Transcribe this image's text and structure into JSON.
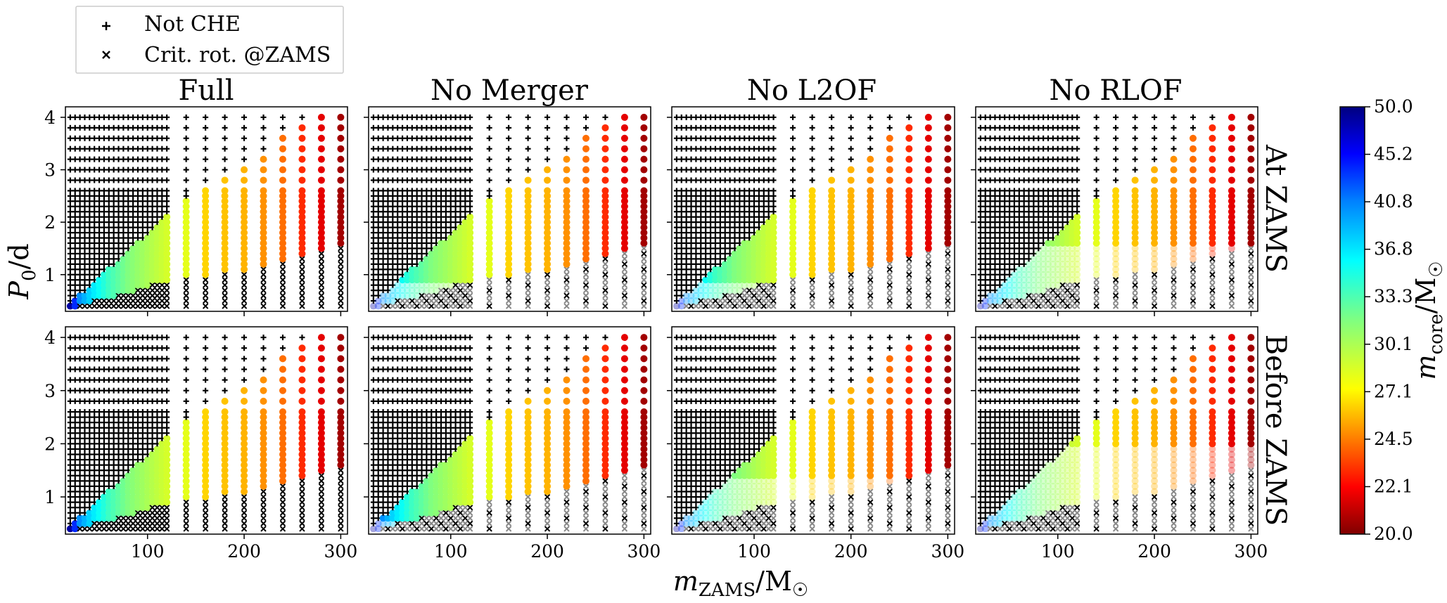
{
  "legend": {
    "items": [
      {
        "marker": "plus",
        "label": "Not CHE"
      },
      {
        "marker": "x",
        "label": "Crit. rot. @ZAMS"
      }
    ]
  },
  "chart_data": {
    "type": "scatter",
    "panel_titles": [
      "Full",
      "No Merger",
      "No L2OF",
      "No RLOF"
    ],
    "row_labels": [
      "At ZAMS",
      "Before ZAMS"
    ],
    "xlabel_base": "m",
    "xlabel_sub": "ZAMS",
    "xlabel_rest": "/M",
    "ylabel_base": "P",
    "ylabel_sub": "0",
    "ylabel_rest": "/d",
    "xticks": [
      100,
      200,
      300
    ],
    "yticks": [
      1,
      2,
      3,
      4
    ],
    "xlim": [
      15,
      307
    ],
    "ylim": [
      0.3,
      4.2
    ],
    "x_grid_masses": [
      20,
      25,
      30,
      35,
      40,
      45,
      50,
      55,
      60,
      65,
      70,
      75,
      80,
      85,
      90,
      95,
      100,
      105,
      110,
      115,
      120,
      140,
      160,
      180,
      200,
      220,
      240,
      260,
      280,
      300
    ],
    "p0_low_grid": [
      0.4,
      0.5,
      0.6,
      0.7,
      0.8,
      0.9,
      1.0,
      1.1,
      1.2,
      1.3,
      1.4,
      1.5,
      1.6,
      1.7,
      1.8,
      1.9,
      2.0,
      2.1,
      2.2,
      2.3,
      2.4,
      2.5,
      2.6
    ],
    "p0_high_grid": [
      2.8,
      3.0,
      3.2,
      3.4,
      3.6,
      3.8,
      4.0
    ],
    "che_period_limits": {
      "lower": [
        [
          20,
          0.35
        ],
        [
          40,
          0.5
        ],
        [
          80,
          0.65
        ],
        [
          120,
          0.9
        ],
        [
          200,
          1.1
        ],
        [
          300,
          1.55
        ]
      ],
      "upper": [
        [
          20,
          0.45
        ],
        [
          60,
          1.1
        ],
        [
          120,
          2.1
        ],
        [
          140,
          2.45
        ],
        [
          160,
          2.6
        ],
        [
          200,
          3.0
        ],
        [
          240,
          3.6
        ],
        [
          260,
          3.8
        ],
        [
          280,
          4.0
        ],
        [
          300,
          4.1
        ]
      ]
    },
    "core_mass_vs_mzams": [
      [
        20,
        21
      ],
      [
        25,
        25
      ],
      [
        30,
        28
      ],
      [
        40,
        30
      ],
      [
        60,
        33
      ],
      [
        80,
        35
      ],
      [
        120,
        37.5
      ],
      [
        140,
        38
      ],
      [
        160,
        40
      ],
      [
        200,
        41
      ],
      [
        240,
        43
      ],
      [
        280,
        47
      ],
      [
        300,
        49
      ]
    ],
    "colorbar": {
      "label_base": "m",
      "label_sub": "core",
      "label_rest": "/M",
      "range": [
        20.0,
        50.0
      ],
      "ticks": [
        "20.0",
        "22.1",
        "24.5",
        "27.1",
        "30.1",
        "33.3",
        "36.8",
        "40.8",
        "45.2",
        "50.0"
      ],
      "colormap": "jet"
    },
    "panel_variants": [
      {
        "row": 0,
        "col": 0,
        "faded_below_limit": 0.0,
        "grey_markers": false
      },
      {
        "row": 0,
        "col": 1,
        "faded_below_limit": 0.9,
        "grey_markers": true
      },
      {
        "row": 0,
        "col": 2,
        "faded_below_limit": 0.9,
        "grey_markers": true
      },
      {
        "row": 0,
        "col": 3,
        "faded_below_limit": 1.6,
        "grey_markers": true
      },
      {
        "row": 1,
        "col": 0,
        "faded_below_limit": 0.0,
        "grey_markers": false
      },
      {
        "row": 1,
        "col": 1,
        "faded_below_limit": 0.6,
        "grey_markers": true
      },
      {
        "row": 1,
        "col": 2,
        "faded_below_limit": 1.4,
        "grey_markers": true
      },
      {
        "row": 1,
        "col": 3,
        "faded_below_limit": 2.0,
        "grey_markers": true
      }
    ]
  }
}
